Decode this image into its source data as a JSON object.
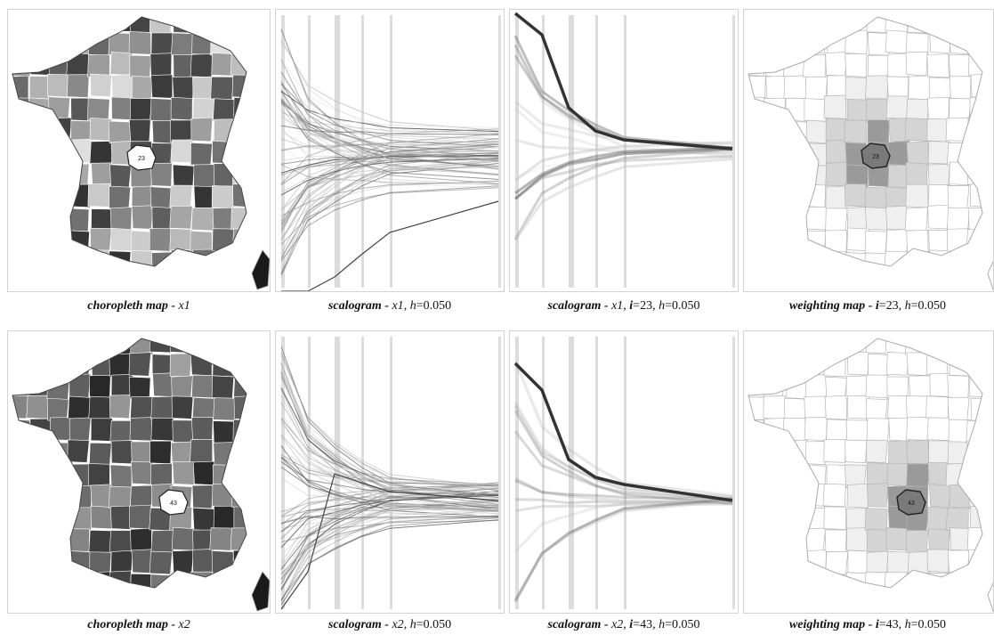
{
  "figure": {
    "rows": [
      {
        "variable": "x1",
        "region": "23",
        "panels": [
          {
            "kind": "choropleth",
            "caption": {
              "title": "choropleth map - ",
              "var": "x1",
              "sep1": "",
              "ilabel": "",
              "ival": "",
              "sep2": "",
              "hlabel": "",
              "hval": ""
            }
          },
          {
            "kind": "scalogram",
            "caption": {
              "title": "scalogram - ",
              "var": "x1",
              "sep1": ", ",
              "ilabel": "",
              "ival": "",
              "sep2": "",
              "hlabel": "h",
              "hval": "=0.050"
            }
          },
          {
            "kind": "scalogram-i",
            "caption": {
              "title": "scalogram - ",
              "var": "x1",
              "sep1": ", ",
              "ilabel": "i",
              "ival": "=23",
              "sep2": ", ",
              "hlabel": "h",
              "hval": "=0.050"
            }
          },
          {
            "kind": "weighting",
            "caption": {
              "title": "weighting map - ",
              "var": "",
              "sep1": "",
              "ilabel": "i",
              "ival": "=23",
              "sep2": ", ",
              "hlabel": "h",
              "hval": "=0.050"
            }
          }
        ]
      },
      {
        "variable": "x2",
        "region": "43",
        "panels": [
          {
            "kind": "choropleth",
            "caption": {
              "title": "choropleth map - ",
              "var": "x2",
              "sep1": "",
              "ilabel": "",
              "ival": "",
              "sep2": "",
              "hlabel": "",
              "hval": ""
            }
          },
          {
            "kind": "scalogram",
            "caption": {
              "title": "scalogram - ",
              "var": "x2",
              "sep1": ", ",
              "ilabel": "",
              "ival": "",
              "sep2": "",
              "hlabel": "h",
              "hval": "=0.050"
            }
          },
          {
            "kind": "scalogram-i",
            "caption": {
              "title": "scalogram - ",
              "var": "x2",
              "sep1": ", ",
              "ilabel": "i",
              "ival": "=43",
              "sep2": ", ",
              "hlabel": "h",
              "hval": "=0.050"
            }
          },
          {
            "kind": "weighting",
            "caption": {
              "title": "weighting map - ",
              "var": "",
              "sep1": "",
              "ilabel": "i",
              "ival": "=43",
              "sep2": ", ",
              "hlabel": "h",
              "hval": "=0.050"
            }
          }
        ]
      }
    ],
    "colors": {
      "border": "#d2d2d2",
      "scale_bar": "#d8d8d8",
      "line_dark": "#3a3a3a",
      "map_outline": "#b5b5b5"
    }
  }
}
